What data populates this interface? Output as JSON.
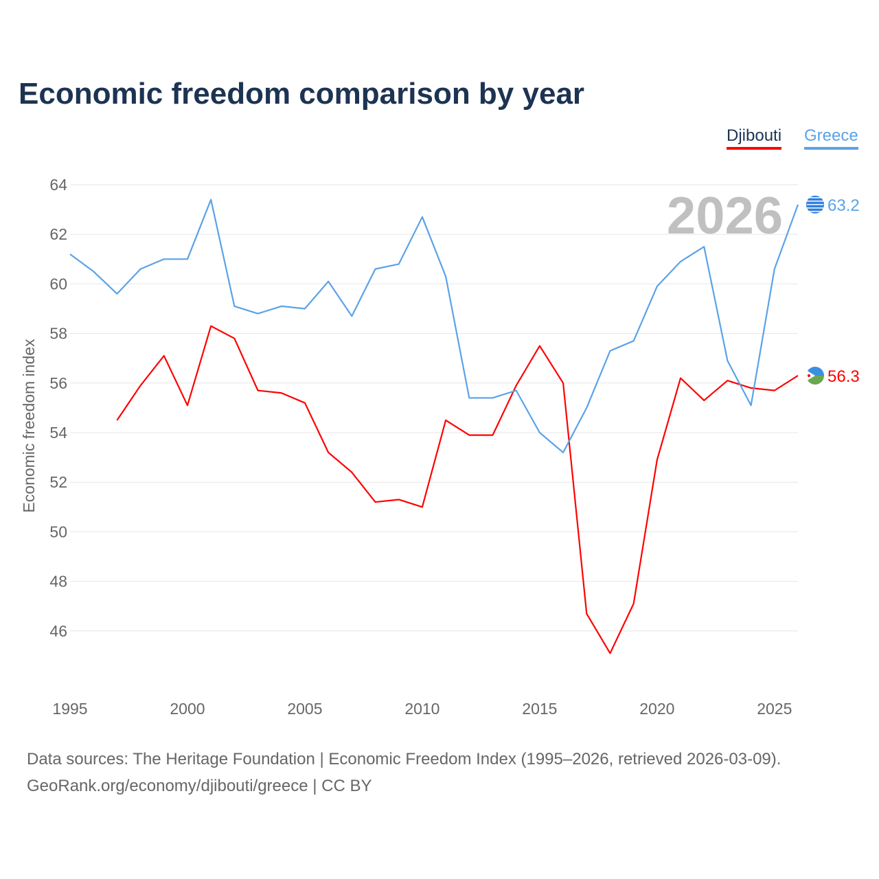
{
  "title": "Economic freedom comparison by year",
  "legend": [
    "Djibouti",
    "Greece"
  ],
  "footer": {
    "line1": "Data sources: The Heritage Foundation | Economic Freedom Index (1995–2026, retrieved 2026-03-09).",
    "line2": "GeoRank.org/economy/djibouti/greece | CC BY"
  },
  "chart_data": {
    "type": "line",
    "title": "Economic freedom comparison by year",
    "xlabel": "",
    "ylabel": "Economic freedom index",
    "xlim": [
      1995,
      2026
    ],
    "ylim": [
      44,
      64
    ],
    "x_ticks": [
      1995,
      2000,
      2005,
      2010,
      2015,
      2020,
      2025
    ],
    "y_ticks": [
      46,
      48,
      50,
      52,
      54,
      56,
      58,
      60,
      62,
      64
    ],
    "grid": true,
    "legend_position": "top-right",
    "year_watermark": "2026",
    "series": [
      {
        "name": "Djibouti",
        "color": "#ff0000",
        "end_label": "56.3",
        "x": [
          1997,
          1998,
          1999,
          2000,
          2001,
          2002,
          2003,
          2004,
          2005,
          2006,
          2007,
          2008,
          2009,
          2010,
          2011,
          2012,
          2013,
          2014,
          2015,
          2016,
          2017,
          2018,
          2019,
          2020,
          2021,
          2022,
          2023,
          2024,
          2025,
          2026
        ],
        "values": [
          54.5,
          55.9,
          57.1,
          55.1,
          58.3,
          57.8,
          55.7,
          55.6,
          55.2,
          53.2,
          52.4,
          51.2,
          51.3,
          51.0,
          54.5,
          53.9,
          53.9,
          55.9,
          57.5,
          56.0,
          46.7,
          45.1,
          47.1,
          52.9,
          56.2,
          55.3,
          56.1,
          55.8,
          55.7,
          56.3
        ]
      },
      {
        "name": "Greece",
        "color": "#5aa2e8",
        "end_label": "63.2",
        "x": [
          1995,
          1996,
          1997,
          1998,
          1999,
          2000,
          2001,
          2002,
          2003,
          2004,
          2005,
          2006,
          2007,
          2008,
          2009,
          2010,
          2011,
          2012,
          2013,
          2014,
          2015,
          2016,
          2017,
          2018,
          2019,
          2020,
          2021,
          2022,
          2023,
          2024,
          2025,
          2026
        ],
        "values": [
          61.2,
          60.5,
          59.6,
          60.6,
          61.0,
          61.0,
          63.4,
          59.1,
          58.8,
          59.1,
          59.0,
          60.1,
          58.7,
          60.6,
          60.8,
          62.7,
          60.3,
          55.4,
          55.4,
          55.7,
          54.0,
          53.2,
          55.0,
          57.3,
          57.7,
          59.9,
          60.9,
          61.5,
          56.9,
          55.1,
          60.6,
          63.2
        ]
      }
    ]
  }
}
